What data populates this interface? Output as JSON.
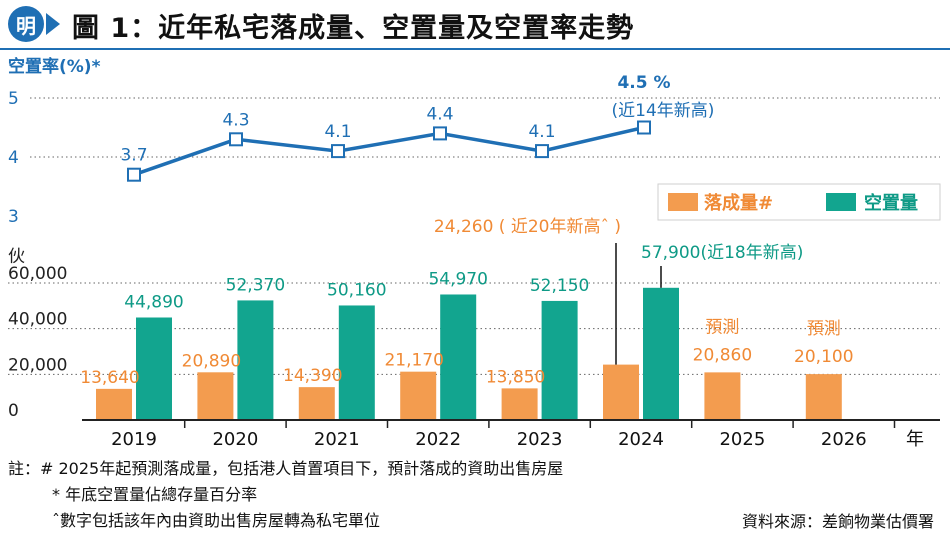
{
  "header": {
    "logo_text": "明",
    "title": "圖 1：近年私宅落成量、空置量及空置率走勢"
  },
  "colors": {
    "vacancy_line": "#1f6fb4",
    "completion": "#f39c4f",
    "vacant": "#12a58f",
    "completion_text": "#f08a35",
    "vacant_text": "#0e9a86"
  },
  "chart_data": [
    {
      "type": "line",
      "ylabel": "空置率(%)*",
      "ylim": [
        3,
        5
      ],
      "yticks": [
        "3",
        "4",
        "5"
      ],
      "x": [
        "2019",
        "2020",
        "2021",
        "2022",
        "2023",
        "2024"
      ],
      "values": [
        3.7,
        4.3,
        4.1,
        4.4,
        4.1,
        4.5
      ],
      "labels": [
        "3.7",
        "4.3",
        "4.1",
        "4.4",
        "4.1",
        "4.5 %"
      ],
      "annotation": "(近14年新高)"
    },
    {
      "type": "bar",
      "ylabel": "伙",
      "ylim": [
        0,
        60000
      ],
      "yticks": [
        "0",
        "20,000",
        "40,000",
        "60,000"
      ],
      "categories": [
        "2019",
        "2020",
        "2021",
        "2022",
        "2023",
        "2024",
        "2025",
        "2026"
      ],
      "extra_axis_label": "年",
      "legend": [
        "落成量#",
        "空置量"
      ],
      "series": [
        {
          "name": "落成量#",
          "values": [
            13640,
            20890,
            14390,
            21170,
            13850,
            24260,
            20860,
            20100
          ],
          "labels": [
            "13,640",
            "20,890",
            "14,390",
            "21,170",
            "13,850",
            "24,260 ( 近20年新高ˆ )",
            "20,860",
            "20,100"
          ]
        },
        {
          "name": "空置量",
          "values": [
            44890,
            52370,
            50160,
            54970,
            52150,
            57900,
            null,
            null
          ],
          "labels": [
            "44,890",
            "52,370",
            "50,160",
            "54,970",
            "52,150",
            "57,900(近18年新高)",
            "",
            ""
          ]
        }
      ],
      "forecast_label": "預測"
    }
  ],
  "notes": [
    "註：# 2025年起預測落成量，包括港人首置項目下，預計落成的資助出售房屋",
    "* 年底空置量佔總存量百分率",
    "ˆ數字包括該年內由資助出售房屋轉為私宅單位"
  ],
  "source": "資料來源：差餉物業估價署"
}
